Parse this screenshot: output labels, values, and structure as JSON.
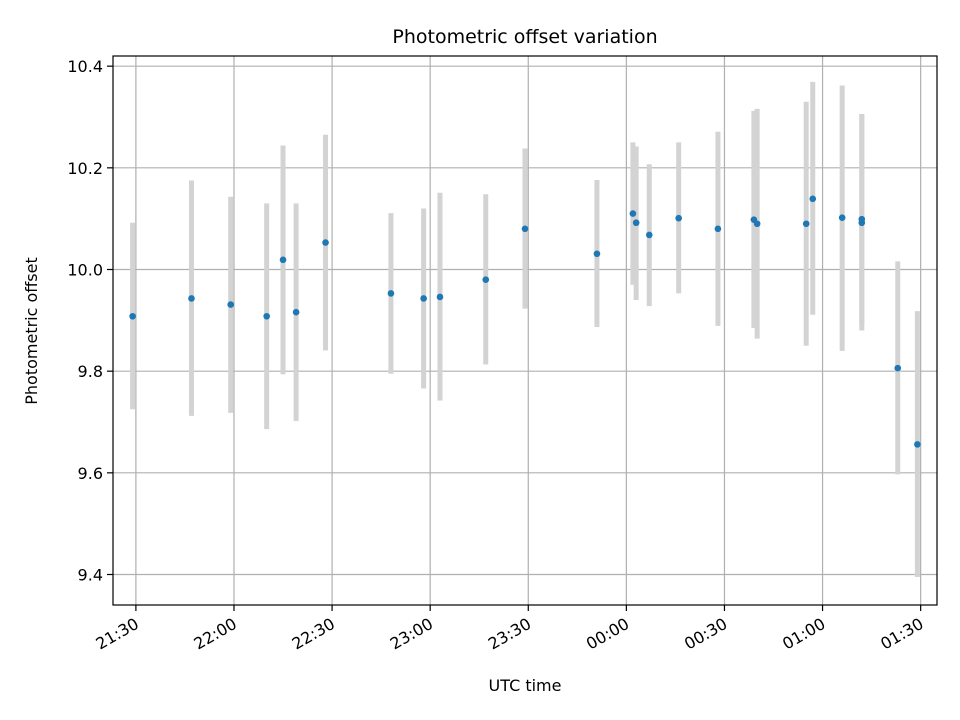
{
  "chart_data": {
    "type": "scatter",
    "title": "Photometric offset variation",
    "xlabel": "UTC time",
    "ylabel": "Photometric offset",
    "x_ticks": [
      {
        "t": "21:30",
        "label": "21:30"
      },
      {
        "t": "22:00",
        "label": "22:00"
      },
      {
        "t": "22:30",
        "label": "22:30"
      },
      {
        "t": "23:00",
        "label": "23:00"
      },
      {
        "t": "23:30",
        "label": "23:30"
      },
      {
        "t": "00:00",
        "label": "00:00"
      },
      {
        "t": "00:30",
        "label": "00:30"
      },
      {
        "t": "01:00",
        "label": "01:00"
      },
      {
        "t": "01:30",
        "label": "01:30"
      }
    ],
    "xlim": [
      "21:23",
      "01:35"
    ],
    "ylim": [
      9.34,
      10.42
    ],
    "y_ticks": [
      9.4,
      9.6,
      9.8,
      10.0,
      10.2,
      10.4
    ],
    "grid": true,
    "point_color": "#1f77b4",
    "errorbar_color": "#d3d3d3",
    "points": [
      {
        "t": "21:29",
        "y": 9.908,
        "err_low": 9.725,
        "err_high": 10.092
      },
      {
        "t": "21:47",
        "y": 9.943,
        "err_low": 9.712,
        "err_high": 10.175
      },
      {
        "t": "21:59",
        "y": 9.931,
        "err_low": 9.718,
        "err_high": 10.143
      },
      {
        "t": "22:10",
        "y": 9.908,
        "err_low": 9.686,
        "err_high": 10.13
      },
      {
        "t": "22:15",
        "y": 10.019,
        "err_low": 9.794,
        "err_high": 10.244
      },
      {
        "t": "22:19",
        "y": 9.916,
        "err_low": 9.702,
        "err_high": 10.13
      },
      {
        "t": "22:28",
        "y": 10.053,
        "err_low": 9.841,
        "err_high": 10.265
      },
      {
        "t": "22:48",
        "y": 9.953,
        "err_low": 9.795,
        "err_high": 10.111
      },
      {
        "t": "22:58",
        "y": 9.943,
        "err_low": 9.766,
        "err_high": 10.12
      },
      {
        "t": "23:03",
        "y": 9.946,
        "err_low": 9.742,
        "err_high": 10.151
      },
      {
        "t": "23:17",
        "y": 9.98,
        "err_low": 9.813,
        "err_high": 10.148
      },
      {
        "t": "23:29",
        "y": 10.08,
        "err_low": 9.923,
        "err_high": 10.238
      },
      {
        "t": "23:51",
        "y": 10.031,
        "err_low": 9.887,
        "err_high": 10.176
      },
      {
        "t": "00:02",
        "y": 10.11,
        "err_low": 9.97,
        "err_high": 10.25
      },
      {
        "t": "00:03",
        "y": 10.092,
        "err_low": 9.94,
        "err_high": 10.242
      },
      {
        "t": "00:07",
        "y": 10.068,
        "err_low": 9.928,
        "err_high": 10.207
      },
      {
        "t": "00:16",
        "y": 10.101,
        "err_low": 9.953,
        "err_high": 10.25
      },
      {
        "t": "00:28",
        "y": 10.08,
        "err_low": 9.889,
        "err_high": 10.271
      },
      {
        "t": "00:39",
        "y": 10.098,
        "err_low": 9.885,
        "err_high": 10.312
      },
      {
        "t": "00:40",
        "y": 10.09,
        "err_low": 9.864,
        "err_high": 10.316
      },
      {
        "t": "00:55",
        "y": 10.09,
        "err_low": 9.85,
        "err_high": 10.33
      },
      {
        "t": "00:57",
        "y": 10.139,
        "err_low": 9.911,
        "err_high": 10.369
      },
      {
        "t": "01:06",
        "y": 10.102,
        "err_low": 9.84,
        "err_high": 10.362
      },
      {
        "t": "01:12",
        "y": 10.099,
        "err_low": 9.893,
        "err_high": 10.306
      },
      {
        "t": "01:12",
        "y": 10.092,
        "err_low": 9.88,
        "err_high": 10.304
      },
      {
        "t": "01:23",
        "y": 9.806,
        "err_low": 9.597,
        "err_high": 10.016
      },
      {
        "t": "01:29",
        "y": 9.656,
        "err_low": 9.395,
        "err_high": 9.918
      }
    ]
  }
}
